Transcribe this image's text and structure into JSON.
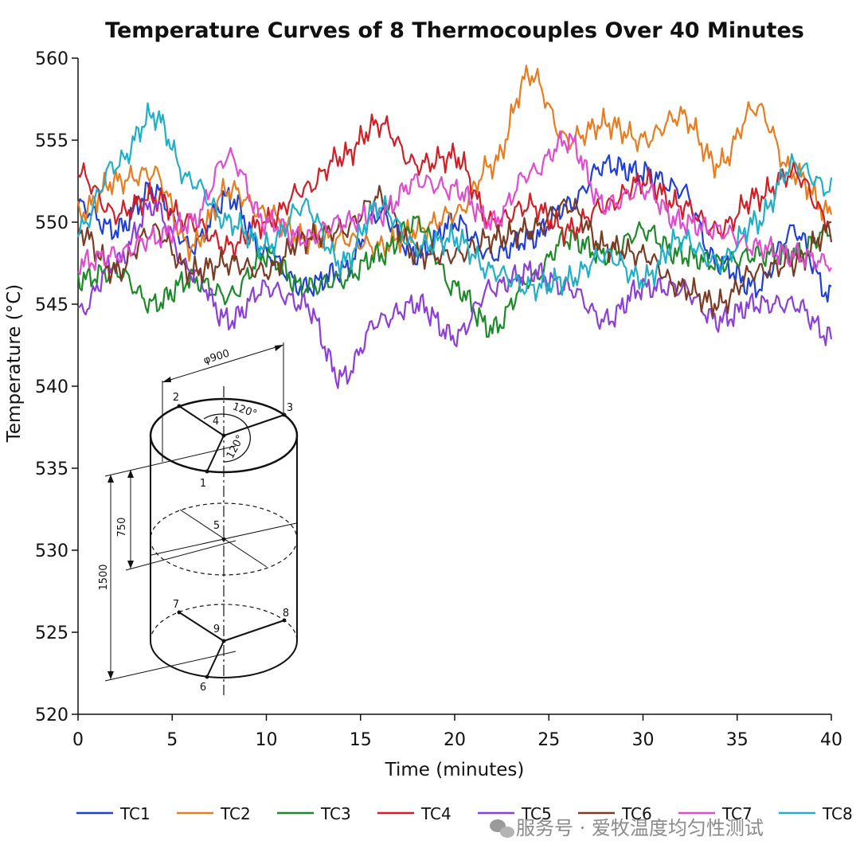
{
  "chart_data": {
    "type": "line",
    "title": "Temperature Curves of 8 Thermocouples Over 40 Minutes",
    "xlabel": "Time (minutes)",
    "ylabel": "Temperature (°C)",
    "xlim": [
      0,
      40
    ],
    "ylim": [
      520,
      560
    ],
    "xticks": [
      "0",
      "5",
      "10",
      "15",
      "20",
      "25",
      "30",
      "35",
      "40"
    ],
    "yticks": [
      "520",
      "525",
      "530",
      "535",
      "540",
      "545",
      "550",
      "555",
      "560"
    ],
    "grid": false,
    "legend_position": "bottom",
    "x": [
      0,
      2,
      4,
      6,
      8,
      10,
      12,
      14,
      16,
      18,
      20,
      22,
      24,
      26,
      28,
      30,
      32,
      34,
      36,
      38,
      40
    ],
    "series": [
      {
        "name": "TC1",
        "color": "#1f3fd8",
        "values": [
          551.0,
          549.5,
          552.0,
          548.5,
          551.5,
          548.0,
          546.0,
          547.0,
          550.5,
          548.0,
          550.0,
          548.0,
          549.0,
          551.0,
          553.5,
          553.0,
          552.0,
          547.5,
          546.0,
          549.5,
          545.5
        ]
      },
      {
        "name": "TC2",
        "color": "#e87c1e",
        "values": [
          550.5,
          552.5,
          553.0,
          548.5,
          552.0,
          550.5,
          549.0,
          549.0,
          548.5,
          549.5,
          550.5,
          553.5,
          559.0,
          555.0,
          556.0,
          555.0,
          556.5,
          553.5,
          557.0,
          553.0,
          550.5
        ]
      },
      {
        "name": "TC3",
        "color": "#1d8a2a",
        "values": [
          546.5,
          547.0,
          545.0,
          546.5,
          545.5,
          548.0,
          546.0,
          546.5,
          548.0,
          550.0,
          546.0,
          543.5,
          546.5,
          549.0,
          548.0,
          549.5,
          548.0,
          547.5,
          548.0,
          548.0,
          549.5
        ]
      },
      {
        "name": "TC4",
        "color": "#d21e25",
        "values": [
          553.0,
          550.5,
          551.5,
          550.0,
          548.5,
          550.0,
          552.0,
          554.0,
          556.0,
          553.5,
          554.0,
          550.0,
          551.0,
          549.5,
          551.0,
          552.5,
          551.0,
          549.5,
          551.5,
          553.0,
          550.0
        ]
      },
      {
        "name": "TC5",
        "color": "#8c3fd8",
        "values": [
          544.5,
          547.5,
          551.0,
          547.0,
          544.0,
          546.0,
          545.0,
          540.5,
          544.0,
          545.0,
          543.0,
          546.0,
          547.0,
          546.0,
          544.0,
          546.0,
          546.0,
          544.0,
          545.0,
          545.0,
          543.0
        ]
      },
      {
        "name": "TC6",
        "color": "#7b3a22",
        "values": [
          549.5,
          547.0,
          549.5,
          547.0,
          547.5,
          547.0,
          549.0,
          549.5,
          551.5,
          548.0,
          548.0,
          549.0,
          549.5,
          551.0,
          548.5,
          548.0,
          546.0,
          545.0,
          547.0,
          547.5,
          549.5
        ]
      },
      {
        "name": "TC7",
        "color": "#e04bd0",
        "values": [
          547.5,
          548.0,
          549.0,
          550.0,
          554.0,
          550.0,
          549.0,
          550.0,
          550.5,
          552.5,
          552.0,
          550.0,
          553.0,
          555.0,
          551.0,
          552.0,
          550.0,
          549.5,
          548.5,
          548.0,
          547.5
        ]
      },
      {
        "name": "TC8",
        "color": "#1fb0c8",
        "values": [
          549.5,
          553.5,
          556.5,
          552.5,
          550.0,
          548.5,
          551.0,
          547.5,
          551.0,
          548.5,
          549.0,
          547.0,
          546.0,
          546.5,
          548.0,
          546.5,
          549.0,
          547.5,
          550.0,
          553.5,
          552.0
        ]
      }
    ],
    "inset_diagram": {
      "diameter_label": "φ900",
      "angle_label_1": "120°",
      "angle_label_2": "120°",
      "height_label_half": "750",
      "height_label_full": "1500",
      "point_labels": [
        "1",
        "2",
        "3",
        "4",
        "5",
        "6",
        "7",
        "8",
        "9"
      ]
    }
  },
  "watermark": "服务号 · 爱牧温度均匀性测试"
}
